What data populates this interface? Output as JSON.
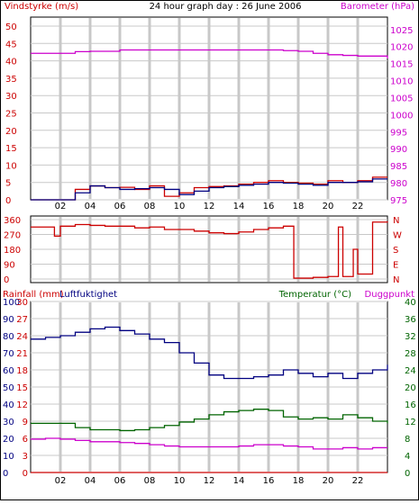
{
  "header": {
    "title": "24 hour graph day : 26 June 2006",
    "left_label": "Vindstyrke (m/s)",
    "right_label": "Barometer (hPa)"
  },
  "colors": {
    "wind_red": "#cc0000",
    "baro_magenta": "#cc00cc",
    "navy": "#000080",
    "green": "#006400",
    "grid": "#c8c8c8"
  },
  "x_ticks": [
    "02",
    "04",
    "06",
    "08",
    "10",
    "12",
    "14",
    "16",
    "18",
    "20",
    "22"
  ],
  "chart_data": [
    {
      "type": "line",
      "name": "wind-barometer",
      "title": "24 hour graph day : 26 June 2006",
      "x_hours": [
        0,
        2,
        3,
        4,
        5,
        6,
        7,
        8,
        9,
        10,
        11,
        12,
        13,
        14,
        15,
        16,
        17,
        18,
        19,
        20,
        21,
        22,
        23,
        24
      ],
      "left_axis": {
        "label": "Vindstyrke (m/s)",
        "ticks": [
          0,
          5,
          10,
          15,
          20,
          25,
          30,
          35,
          40,
          45,
          50
        ],
        "range": [
          0,
          50
        ]
      },
      "right_axis": {
        "label": "Barometer (hPa)",
        "ticks": [
          975,
          980,
          985,
          990,
          995,
          1000,
          1005,
          1010,
          1015,
          1020,
          1025
        ],
        "range": [
          975,
          1026
        ]
      },
      "series": [
        {
          "name": "wind-gust",
          "color": "#cc0000",
          "values": [
            0,
            0,
            3,
            4,
            3.5,
            3.6,
            3,
            4,
            1,
            2,
            3.5,
            3.8,
            4,
            4.5,
            5,
            5.5,
            5,
            4.8,
            4.5,
            5.5,
            5,
            5.5,
            6.5,
            6.5
          ]
        },
        {
          "name": "wind-avg",
          "color": "#000080",
          "values": [
            0,
            0,
            2,
            4,
            3.5,
            3,
            3.2,
            3.5,
            3,
            1.5,
            2.5,
            3.5,
            3.8,
            4.2,
            4.5,
            5,
            4.8,
            4.5,
            4.2,
            5,
            5,
            5.2,
            6,
            6
          ]
        },
        {
          "name": "barometer",
          "color": "#cc00cc",
          "values": [
            1018,
            1018,
            1018.5,
            1018.6,
            1018.6,
            1019,
            1019,
            1019,
            1019,
            1019,
            1019,
            1019,
            1019,
            1019,
            1019,
            1019,
            1018.8,
            1018.6,
            1018,
            1017.6,
            1017.4,
            1017.2,
            1017.2,
            1016.5
          ]
        }
      ]
    },
    {
      "type": "line",
      "name": "wind-direction",
      "x_hours": [
        0,
        1.5,
        1.6,
        2,
        3,
        4,
        5,
        6,
        7,
        8,
        9,
        10,
        11,
        12,
        13,
        14,
        15,
        16,
        17,
        17.6,
        17.7,
        18,
        19,
        20,
        20.6,
        20.7,
        20.9,
        21,
        21.6,
        21.7,
        22,
        23,
        24
      ],
      "left_axis": {
        "ticks": [
          0,
          90,
          180,
          270,
          360
        ],
        "range": [
          0,
          360
        ]
      },
      "right_axis": {
        "ticks": [
          "N",
          "W",
          "S",
          "E",
          "N"
        ]
      },
      "series": [
        {
          "name": "direction",
          "color": "#cc0000",
          "values": [
            315,
            315,
            260,
            320,
            330,
            325,
            320,
            320,
            310,
            315,
            300,
            300,
            290,
            280,
            275,
            285,
            300,
            310,
            320,
            320,
            5,
            5,
            10,
            15,
            15,
            315,
            315,
            15,
            15,
            180,
            30,
            345,
            350
          ]
        }
      ]
    },
    {
      "type": "line",
      "name": "rain-humidity-temperature",
      "x_hours": [
        0,
        1,
        2,
        3,
        4,
        5,
        6,
        7,
        8,
        9,
        10,
        11,
        12,
        13,
        14,
        15,
        16,
        17,
        18,
        19,
        20,
        21,
        22,
        23,
        24
      ],
      "axes": {
        "rainfall": {
          "label": "Rainfall (mm)",
          "ticks": [
            0,
            3,
            6,
            9,
            12,
            15,
            18,
            21,
            24,
            27,
            30
          ]
        },
        "humidity": {
          "label": "Luftfuktighet",
          "ticks": [
            0,
            10,
            20,
            30,
            40,
            50,
            60,
            70,
            80,
            90,
            100
          ]
        },
        "temperature": {
          "label": "Temperatur (°C)",
          "ticks": [
            0,
            4,
            8,
            12,
            16,
            20,
            24,
            28,
            32,
            36,
            40
          ]
        },
        "dewpoint": {
          "label": "Duggpunkt"
        }
      },
      "series": [
        {
          "name": "humidity",
          "color": "#000080",
          "values": [
            78,
            79,
            80,
            82,
            84,
            85,
            83,
            81,
            78,
            76,
            70,
            64,
            57,
            55,
            55,
            56,
            57,
            60,
            58,
            56,
            58,
            55,
            58,
            60,
            63
          ]
        },
        {
          "name": "temperature",
          "color": "#006400",
          "values": [
            11.5,
            11.5,
            11.5,
            10.5,
            10,
            10,
            9.8,
            10,
            10.5,
            11,
            11.8,
            12.5,
            13.5,
            14.2,
            14.5,
            14.8,
            14.5,
            13,
            12.5,
            12.8,
            12.5,
            13.5,
            12.8,
            12,
            11.5
          ]
        },
        {
          "name": "dewpoint",
          "color": "#cc00cc",
          "values": [
            7.8,
            8,
            7.8,
            7.5,
            7.2,
            7.2,
            7,
            6.8,
            6.5,
            6.2,
            6,
            6,
            6,
            6,
            6.2,
            6.5,
            6.5,
            6.2,
            6,
            5.5,
            5.5,
            5.8,
            5.5,
            5.8,
            5.8
          ]
        },
        {
          "name": "rainfall",
          "color": "#cc0000",
          "values": [
            0,
            0,
            0,
            0,
            0,
            0,
            0,
            0,
            0,
            0,
            0,
            0,
            0,
            0,
            0,
            0,
            0,
            0,
            0,
            0,
            0,
            0,
            0,
            0,
            0
          ]
        }
      ]
    }
  ]
}
